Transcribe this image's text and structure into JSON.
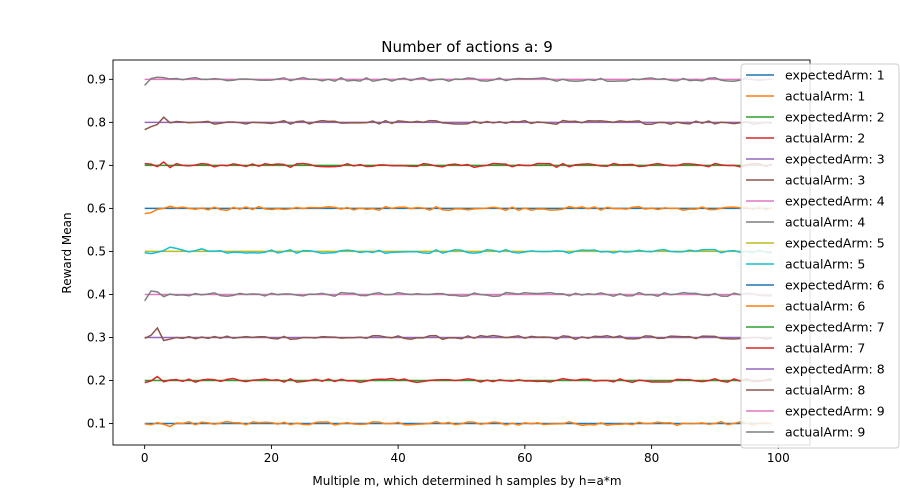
{
  "chart_data": {
    "type": "line",
    "title": "Number of actions a: 9",
    "xlabel": "Multiple m, which determined h samples by h=a*m",
    "ylabel": "Reward Mean",
    "xlim": [
      -5,
      105
    ],
    "ylim": [
      0.05,
      0.945
    ],
    "xticks": [
      0,
      20,
      40,
      60,
      80,
      100
    ],
    "yticks": [
      0.1,
      0.2,
      0.3,
      0.4,
      0.5,
      0.6,
      0.7,
      0.8,
      0.9
    ],
    "grid": false,
    "legend_position": "right (overlapping plot edge)",
    "n_points": 100,
    "series": [
      {
        "name": "expectedArm: 1",
        "color": "#1f77b4",
        "kind": "expected",
        "value": 0.1
      },
      {
        "name": "actualArm: 1",
        "color": "#ff7f0e",
        "kind": "actual",
        "value": 0.1,
        "start": [
          0.099,
          0.097,
          0.102,
          0.098,
          0.093,
          0.101,
          0.1,
          0.104,
          0.097,
          0.103
        ]
      },
      {
        "name": "expectedArm: 2",
        "color": "#2ca02c",
        "kind": "expected",
        "value": 0.2
      },
      {
        "name": "actualArm: 2",
        "color": "#d62728",
        "kind": "actual",
        "value": 0.2,
        "start": [
          0.195,
          0.199,
          0.209,
          0.197,
          0.201,
          0.202,
          0.198,
          0.203,
          0.196,
          0.201
        ]
      },
      {
        "name": "expectedArm: 3",
        "color": "#9467bd",
        "kind": "expected",
        "value": 0.3
      },
      {
        "name": "actualArm: 3",
        "color": "#8c564b",
        "kind": "actual",
        "value": 0.3,
        "start": [
          0.298,
          0.305,
          0.322,
          0.293,
          0.296,
          0.3,
          0.298,
          0.302,
          0.297,
          0.301
        ]
      },
      {
        "name": "expectedArm: 4",
        "color": "#e377c2",
        "kind": "expected",
        "value": 0.4
      },
      {
        "name": "actualArm: 4",
        "color": "#7f7f7f",
        "kind": "actual",
        "value": 0.4,
        "start": [
          0.385,
          0.408,
          0.406,
          0.395,
          0.401,
          0.398,
          0.399,
          0.397,
          0.402,
          0.399
        ]
      },
      {
        "name": "expectedArm: 5",
        "color": "#bcbd22",
        "kind": "expected",
        "value": 0.5
      },
      {
        "name": "actualArm: 5",
        "color": "#17becf",
        "kind": "actual",
        "value": 0.5,
        "start": [
          0.497,
          0.495,
          0.498,
          0.502,
          0.51,
          0.507,
          0.503,
          0.499,
          0.502,
          0.506
        ]
      },
      {
        "name": "expectedArm: 6",
        "color": "#1f77b4",
        "kind": "expected",
        "value": 0.6
      },
      {
        "name": "actualArm: 6",
        "color": "#ff7f0e",
        "kind": "actual",
        "value": 0.6,
        "start": [
          0.588,
          0.59,
          0.598,
          0.6,
          0.605,
          0.601,
          0.603,
          0.6,
          0.598,
          0.601
        ]
      },
      {
        "name": "expectedArm: 7",
        "color": "#2ca02c",
        "kind": "expected",
        "value": 0.7
      },
      {
        "name": "actualArm: 7",
        "color": "#d62728",
        "kind": "actual",
        "value": 0.7,
        "start": [
          0.704,
          0.703,
          0.697,
          0.708,
          0.695,
          0.704,
          0.7,
          0.699,
          0.701,
          0.704
        ]
      },
      {
        "name": "expectedArm: 8",
        "color": "#9467bd",
        "kind": "expected",
        "value": 0.8
      },
      {
        "name": "actualArm: 8",
        "color": "#8c564b",
        "kind": "actual",
        "value": 0.8,
        "start": [
          0.783,
          0.79,
          0.795,
          0.812,
          0.799,
          0.802,
          0.801,
          0.799,
          0.8,
          0.801
        ]
      },
      {
        "name": "expectedArm: 9",
        "color": "#e377c2",
        "kind": "expected",
        "value": 0.9
      },
      {
        "name": "actualArm: 9",
        "color": "#7f7f7f",
        "kind": "actual",
        "value": 0.9,
        "start": [
          0.886,
          0.902,
          0.905,
          0.904,
          0.901,
          0.902,
          0.899,
          0.902,
          0.904,
          0.9
        ]
      }
    ]
  }
}
